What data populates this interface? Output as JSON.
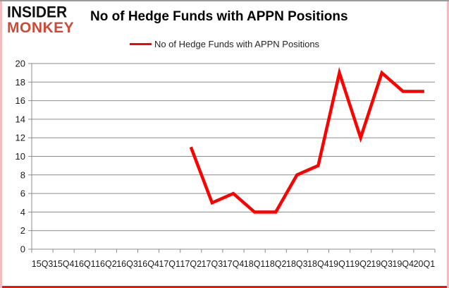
{
  "brand": {
    "line1": "INSIDER",
    "line2": "MONKEY"
  },
  "header": {
    "title": "No of Hedge Funds with APPN Positions"
  },
  "legend": {
    "label": "No of Hedge Funds with APPN Positions"
  },
  "colors": {
    "line_red": "#ff0000",
    "grid_gray": "#8c8c8c",
    "axis_text": "#1a1a1a",
    "logo_red": "#cf4a35",
    "border_bottom_red": "#fb1000",
    "border_side_pink": "#f2bcbc",
    "border_top_gray": "#9a9a9a"
  },
  "chart_data": {
    "type": "line",
    "title": "No of Hedge Funds with APPN Positions",
    "xlabel": "",
    "ylabel": "",
    "categories": [
      "15Q3",
      "15Q4",
      "16Q1",
      "16Q2",
      "16Q3",
      "16Q4",
      "17Q1",
      "17Q2",
      "17Q3",
      "17Q4",
      "18Q1",
      "18Q2",
      "18Q3",
      "18Q4",
      "19Q1",
      "19Q2",
      "19Q3",
      "19Q4",
      "20Q1"
    ],
    "series": [
      {
        "name": "No of Hedge Funds with APPN Positions",
        "color": "#ff0000",
        "values": [
          null,
          null,
          null,
          null,
          null,
          null,
          null,
          11,
          5,
          6,
          4,
          4,
          8,
          9,
          19,
          12,
          19,
          17,
          17
        ]
      }
    ],
    "ylim": [
      0,
      20
    ],
    "ytick_step": 2,
    "grid": true,
    "legend_position": "top-center"
  }
}
